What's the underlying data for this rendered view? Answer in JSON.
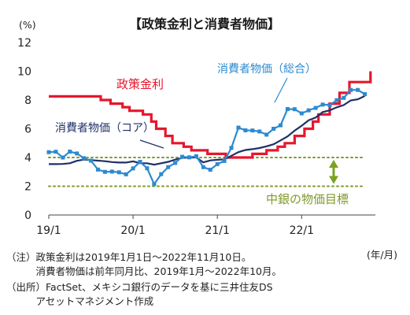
{
  "chart_data": {
    "type": "line",
    "title": "【政策金利と消費者物価】",
    "y_unit_label": "(%)",
    "x_unit_label": "(年/月)",
    "ylim": [
      0,
      12
    ],
    "y_ticks": [
      0,
      2,
      4,
      6,
      8,
      10,
      12
    ],
    "x_ticks": [
      {
        "label": "19/1",
        "month_index": 0
      },
      {
        "label": "20/1",
        "month_index": 12
      },
      {
        "label": "21/1",
        "month_index": 24
      },
      {
        "label": "22/1",
        "month_index": 36
      }
    ],
    "x_range_months": [
      0,
      46.5
    ],
    "grid": false,
    "reference_lines": [
      {
        "name": "中銀の物価目標",
        "values": [
          2,
          4
        ],
        "color": "#7f9a2c",
        "style": "dotted"
      }
    ],
    "band_arrow_color": "#7aa21f",
    "series": [
      {
        "name": "政策金利",
        "color": "#e5172e",
        "step": true,
        "points": [
          [
            0,
            8.25
          ],
          [
            7.4,
            8.25
          ],
          [
            7.4,
            8.0
          ],
          [
            8.8,
            8.0
          ],
          [
            8.8,
            7.75
          ],
          [
            10.5,
            7.75
          ],
          [
            10.5,
            7.5
          ],
          [
            11.5,
            7.5
          ],
          [
            11.5,
            7.25
          ],
          [
            13.4,
            7.25
          ],
          [
            13.4,
            7.0
          ],
          [
            14.6,
            7.0
          ],
          [
            14.6,
            6.5
          ],
          [
            15.3,
            6.5
          ],
          [
            15.3,
            6.0
          ],
          [
            16.6,
            6.0
          ],
          [
            16.6,
            5.5
          ],
          [
            17.6,
            5.5
          ],
          [
            17.6,
            5.0
          ],
          [
            19.2,
            5.0
          ],
          [
            19.2,
            4.75
          ],
          [
            20.3,
            4.75
          ],
          [
            20.3,
            4.5
          ],
          [
            22.6,
            4.5
          ],
          [
            22.6,
            4.25
          ],
          [
            25.2,
            4.25
          ],
          [
            25.2,
            4.0
          ],
          [
            29.0,
            4.0
          ],
          [
            29.0,
            4.25
          ],
          [
            31.0,
            4.25
          ],
          [
            31.0,
            4.5
          ],
          [
            32.6,
            4.5
          ],
          [
            32.6,
            4.75
          ],
          [
            33.6,
            4.75
          ],
          [
            33.6,
            5.0
          ],
          [
            35.0,
            5.0
          ],
          [
            35.0,
            5.5
          ],
          [
            36.4,
            5.5
          ],
          [
            36.4,
            6.0
          ],
          [
            37.6,
            6.0
          ],
          [
            37.6,
            6.5
          ],
          [
            38.4,
            6.5
          ],
          [
            38.4,
            7.0
          ],
          [
            40.0,
            7.0
          ],
          [
            40.0,
            7.75
          ],
          [
            41.4,
            7.75
          ],
          [
            41.4,
            8.5
          ],
          [
            42.8,
            8.5
          ],
          [
            42.8,
            9.25
          ],
          [
            45.8,
            9.25
          ],
          [
            45.8,
            10.0
          ]
        ]
      },
      {
        "name": "消費者物価（総合）",
        "color": "#2c8ad0",
        "marker": "square",
        "x_start": 0,
        "values": [
          4.37,
          4.4,
          4.0,
          4.41,
          4.28,
          3.95,
          3.78,
          3.16,
          3.0,
          3.02,
          2.97,
          2.83,
          3.24,
          3.7,
          3.25,
          2.15,
          2.84,
          3.33,
          3.62,
          4.05,
          4.01,
          4.09,
          3.33,
          3.15,
          3.54,
          3.76,
          4.67,
          6.08,
          5.89,
          5.88,
          5.81,
          5.59,
          6.0,
          6.24,
          7.37,
          7.36,
          7.07,
          7.28,
          7.45,
          7.68,
          7.65,
          7.99,
          8.15,
          8.7,
          8.7,
          8.41
        ]
      },
      {
        "name": "消費者物価（コア）",
        "color": "#1f2f68",
        "marker": "none",
        "x_start": 0,
        "values": [
          3.54,
          3.54,
          3.55,
          3.6,
          3.77,
          3.85,
          3.82,
          3.78,
          3.74,
          3.68,
          3.65,
          3.65,
          3.73,
          3.6,
          3.6,
          3.5,
          3.6,
          3.7,
          3.85,
          3.97,
          4.0,
          4.0,
          3.66,
          3.8,
          3.84,
          3.87,
          4.12,
          4.37,
          4.52,
          4.58,
          4.66,
          4.78,
          4.92,
          5.19,
          5.47,
          5.87,
          6.21,
          6.59,
          6.78,
          7.16,
          7.28,
          7.49,
          7.65,
          7.97,
          8.05,
          8.28
        ]
      }
    ],
    "annotations": [
      {
        "text": "政策金利",
        "series": "政策金利"
      },
      {
        "text": "消費者物価（総合）",
        "series": "消費者物価（総合）"
      },
      {
        "text": "消費者物価（コア）",
        "series": "消費者物価（コア）"
      },
      {
        "text": "中銀の物価目標",
        "series": "中銀の物価目標"
      }
    ]
  },
  "notes": [
    "（注）政策金利は2019年1月1日～2022年11月10日。",
    "　　　消費者物価は前年同月比、2019年1月～2022年10月。",
    "（出所）FactSet、メキシコ銀行のデータを基に三井住友DS",
    "　　　アセットマネジメント作成"
  ]
}
